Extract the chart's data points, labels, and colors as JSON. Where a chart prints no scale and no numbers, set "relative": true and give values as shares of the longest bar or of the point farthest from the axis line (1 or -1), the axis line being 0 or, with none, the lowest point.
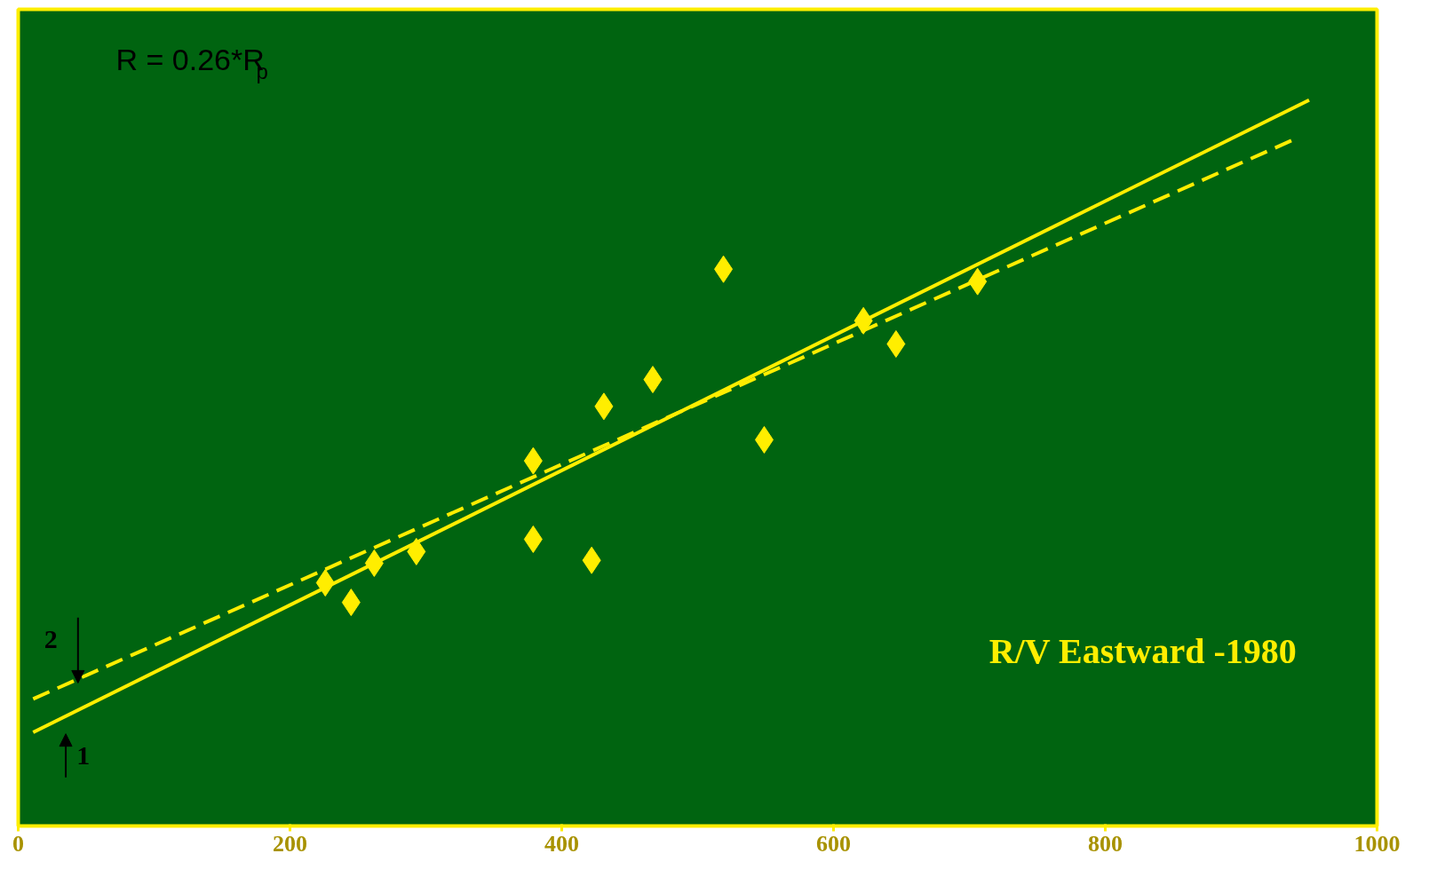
{
  "chart_data": {
    "type": "scatter",
    "relative": true,
    "grid": false,
    "tick_labels": "x",
    "xlim": [
      0,
      1000
    ],
    "xticks": [
      0,
      200,
      400,
      600,
      800,
      1000
    ],
    "series": [
      {
        "marker": "diamond",
        "color": "#ffee00",
        "x": [
          226,
          245,
          262,
          293,
          379,
          379,
          422,
          431,
          467,
          519,
          549,
          622,
          646,
          706
        ],
        "values": [
          0.335,
          0.308,
          0.362,
          0.378,
          0.503,
          0.395,
          0.366,
          0.578,
          0.615,
          0.767,
          0.532,
          0.696,
          0.664,
          0.75
        ]
      },
      {
        "type": "line",
        "color": "#ffee00",
        "line_style": "solid",
        "x": [
          11,
          950
        ],
        "values": [
          0.129,
          1.0
        ]
      },
      {
        "type": "line",
        "color": "#ffee00",
        "line_style": "dashed",
        "x": [
          11,
          938
        ],
        "values": [
          0.175,
          0.945
        ]
      }
    ],
    "annotations": [
      "R = 0.26*R$_{p}$",
      "R/V Eastward -1980",
      "1",
      "2"
    ]
  }
}
